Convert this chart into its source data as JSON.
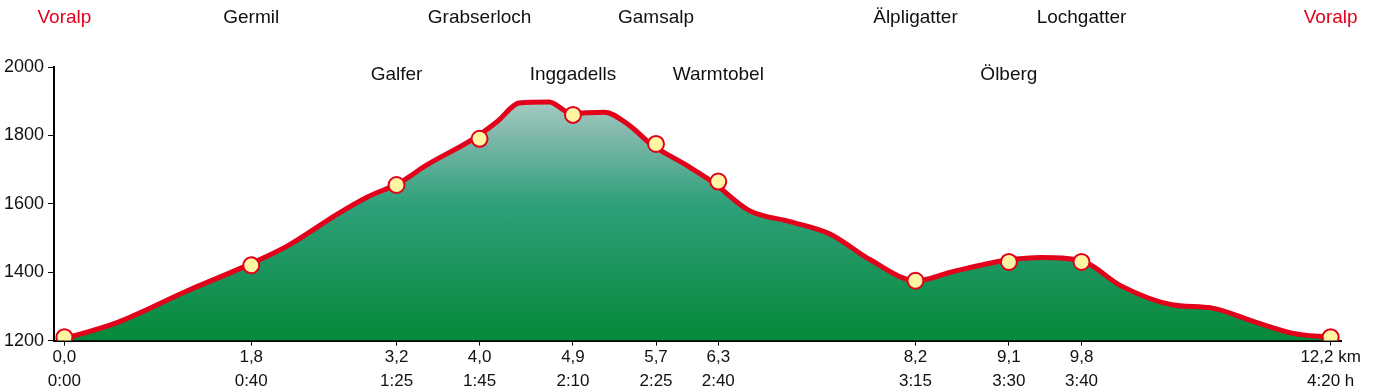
{
  "chart_data": {
    "type": "area",
    "xlim": [
      -0.1,
      12.3
    ],
    "ylim": [
      1200,
      2000
    ],
    "yticks": [
      1200,
      1400,
      1600,
      1800,
      2000
    ],
    "xticks": [
      {
        "value": 0,
        "label": "0,0"
      },
      {
        "value": 1.8,
        "label": "1,8"
      },
      {
        "value": 3.2,
        "label": "3,2"
      },
      {
        "value": 4.0,
        "label": "4,0"
      },
      {
        "value": 4.9,
        "label": "4,9"
      },
      {
        "value": 5.7,
        "label": "5,7"
      },
      {
        "value": 6.3,
        "label": "6,3"
      },
      {
        "value": 8.2,
        "label": "8,2"
      },
      {
        "value": 9.1,
        "label": "9,1"
      },
      {
        "value": 9.8,
        "label": "9,8"
      },
      {
        "value": 12.2,
        "label": "12,2 km"
      }
    ],
    "grid": false,
    "legend": false,
    "series": [
      {
        "color": "#e2001a",
        "marker": "none",
        "x": [
          0,
          0.5,
          1.18,
          1.76,
          2.15,
          2.63,
          2.92,
          3.22,
          3.5,
          3.94,
          4.18,
          4.38,
          4.67,
          4.88,
          5.2,
          5.44,
          5.65,
          6.02,
          6.24,
          6.6,
          6.99,
          7.38,
          7.76,
          8.21,
          8.54,
          9.06,
          9.41,
          9.82,
          10.18,
          10.67,
          11.06,
          11.44,
          11.83,
          12.2
        ],
        "values": [
          1206,
          1252,
          1345,
          1420,
          1477,
          1570,
          1620,
          1660,
          1715,
          1790,
          1843,
          1895,
          1898,
          1865,
          1868,
          1830,
          1775,
          1708,
          1665,
          1580,
          1548,
          1511,
          1437,
          1375,
          1400,
          1434,
          1443,
          1431,
          1360,
          1305,
          1295,
          1258,
          1222,
          1209
        ]
      },
      {
        "type": "scatter",
        "marker": "circle",
        "color": "#fff5a5",
        "x": [
          0,
          1.8,
          3.2,
          4.0,
          4.9,
          5.7,
          6.3,
          8.2,
          9.1,
          9.8,
          12.2
        ],
        "values": [
          1210,
          1420,
          1655,
          1790,
          1860,
          1775,
          1665,
          1375,
          1430,
          1430,
          1210
        ]
      }
    ],
    "annotations": [
      "Voralp",
      "Germil",
      "Galfer",
      "Grabserloch",
      "Inggadells",
      "Gamsalp",
      "Warmtobel",
      "Älpligatter",
      "Ölberg",
      "Lochgatter",
      "Voralp",
      "0:00",
      "0:40",
      "1:25",
      "1:45",
      "2:10",
      "2:25",
      "2:40",
      "3:15",
      "3:30",
      "3:40",
      "4:20 h"
    ]
  }
}
